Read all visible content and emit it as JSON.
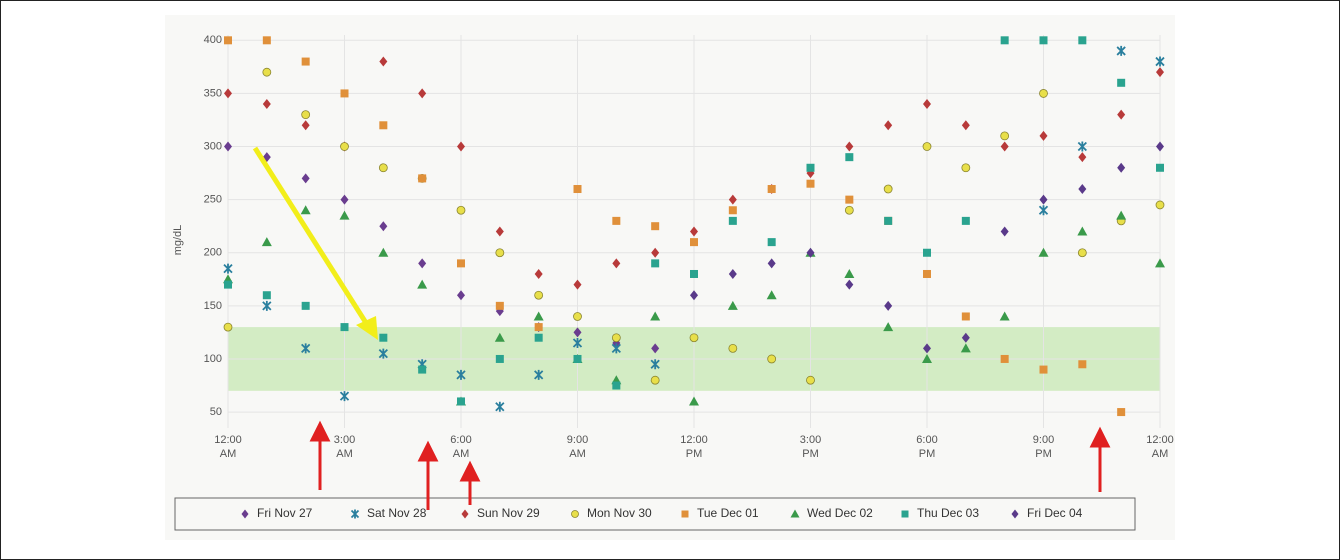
{
  "chart_data": {
    "type": "scatter",
    "ylabel": "mg/dL",
    "x": [
      0,
      1,
      2,
      3,
      4,
      5,
      6,
      7,
      8,
      9,
      10,
      11,
      12,
      13,
      14,
      15,
      16,
      17,
      18,
      19,
      20,
      21,
      22,
      23,
      24
    ],
    "xlim": [
      0,
      24
    ],
    "xticks": [
      {
        "value": 0,
        "label": "12:00 AM"
      },
      {
        "value": 3,
        "label": "3:00 AM"
      },
      {
        "value": 6,
        "label": "6:00 AM"
      },
      {
        "value": 9,
        "label": "9:00 AM"
      },
      {
        "value": 12,
        "label": "12:00 PM"
      },
      {
        "value": 15,
        "label": "3:00 PM"
      },
      {
        "value": 18,
        "label": "6:00 PM"
      },
      {
        "value": 21,
        "label": "9:00 PM"
      },
      {
        "value": 24,
        "label": "12:00 AM"
      }
    ],
    "ylim": [
      35,
      405
    ],
    "yticks": [
      50,
      100,
      150,
      200,
      250,
      300,
      350,
      400
    ],
    "grid": true,
    "target_range": [
      70,
      130
    ],
    "target_color": "#c9e8b8",
    "legend": "bottom",
    "series": [
      {
        "name": "Fri Nov 27",
        "color": "#6a3d8f",
        "marker": "diamond",
        "values": [
          300,
          290,
          270,
          250,
          225,
          190,
          160,
          145,
          130,
          125,
          115,
          110,
          null,
          null,
          null,
          null,
          null,
          null,
          null,
          null,
          null,
          null,
          null,
          null,
          null
        ]
      },
      {
        "name": "Sat Nov 28",
        "color": "#2a7f9e",
        "marker": "star",
        "values": [
          185,
          150,
          110,
          65,
          105,
          95,
          85,
          55,
          85,
          115,
          110,
          95,
          null,
          null,
          null,
          null,
          null,
          null,
          null,
          null,
          null,
          240,
          300,
          390,
          380
        ]
      },
      {
        "name": "Sun Nov 29",
        "color": "#b83a3a",
        "marker": "diamond",
        "values": [
          350,
          340,
          320,
          300,
          380,
          350,
          300,
          220,
          180,
          170,
          190,
          200,
          220,
          250,
          260,
          275,
          300,
          320,
          340,
          320,
          300,
          310,
          290,
          330,
          370
        ]
      },
      {
        "name": "Mon Nov 30",
        "color": "#e8df4a",
        "marker": "circle",
        "values": [
          130,
          370,
          330,
          300,
          280,
          270,
          240,
          200,
          160,
          140,
          120,
          80,
          120,
          110,
          100,
          80,
          240,
          260,
          300,
          280,
          310,
          350,
          200,
          230,
          245
        ]
      },
      {
        "name": "Tue Dec 01",
        "color": "#e0903a",
        "marker": "square",
        "values": [
          400,
          400,
          380,
          350,
          320,
          270,
          190,
          150,
          130,
          260,
          230,
          225,
          210,
          240,
          260,
          265,
          250,
          230,
          180,
          140,
          100,
          90,
          95,
          50,
          null
        ]
      },
      {
        "name": "Wed Dec 02",
        "color": "#3a9a4a",
        "marker": "triangle",
        "values": [
          175,
          210,
          240,
          235,
          200,
          170,
          60,
          120,
          140,
          100,
          80,
          140,
          60,
          150,
          160,
          200,
          180,
          130,
          100,
          110,
          140,
          200,
          220,
          235,
          190
        ]
      },
      {
        "name": "Thu Dec 03",
        "color": "#2aa38f",
        "marker": "square",
        "values": [
          170,
          160,
          150,
          130,
          120,
          90,
          60,
          100,
          120,
          100,
          75,
          190,
          180,
          230,
          210,
          280,
          290,
          230,
          200,
          230,
          400,
          400,
          400,
          360,
          280
        ]
      },
      {
        "name": "Fri Dec 04",
        "color": "#5a3a8a",
        "marker": "diamond",
        "values": [
          null,
          null,
          null,
          null,
          null,
          null,
          null,
          null,
          null,
          null,
          null,
          null,
          160,
          180,
          190,
          200,
          170,
          150,
          110,
          120,
          220,
          250,
          260,
          280,
          300
        ]
      }
    ]
  }
}
